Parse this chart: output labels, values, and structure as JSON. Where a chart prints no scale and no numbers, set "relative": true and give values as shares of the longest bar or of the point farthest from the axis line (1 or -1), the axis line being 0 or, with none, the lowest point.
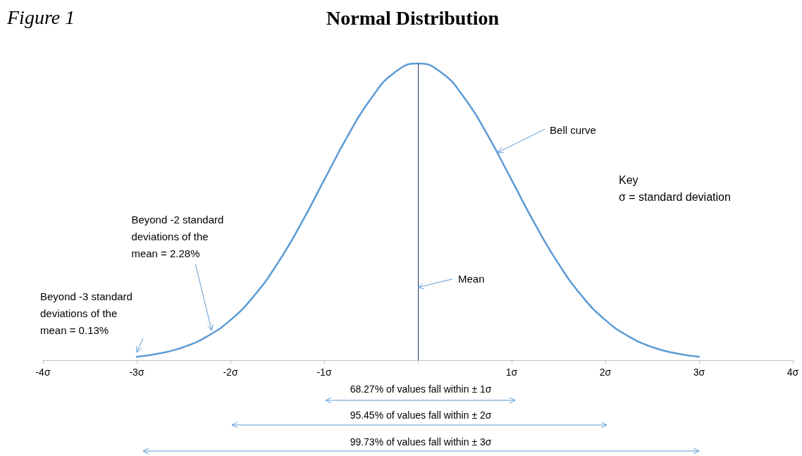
{
  "chart_data": {
    "type": "line",
    "title": "Normal Distribution",
    "relative": true,
    "x": [
      -3,
      -2.75,
      -2.5,
      -2.25,
      -2,
      -1.75,
      -1.5,
      -1.25,
      -1,
      -0.75,
      -0.5,
      -0.25,
      0,
      0.25,
      0.5,
      0.75,
      1,
      1.25,
      1.5,
      1.75,
      2,
      2.25,
      2.5,
      2.75,
      3
    ],
    "series": [
      {
        "color": "#5b9bd5",
        "values": [
          0.011,
          0.023,
          0.044,
          0.08,
          0.135,
          0.216,
          0.325,
          0.458,
          0.607,
          0.755,
          0.882,
          0.969,
          1,
          0.969,
          0.882,
          0.755,
          0.607,
          0.458,
          0.325,
          0.216,
          0.135,
          0.08,
          0.044,
          0.023,
          0.011
        ]
      }
    ],
    "xlim": [
      -4,
      4
    ],
    "xticks": [
      {
        "value": -4,
        "label": "-4σ"
      },
      {
        "value": -3,
        "label": "-3σ"
      },
      {
        "value": -2,
        "label": "-2σ"
      },
      {
        "value": -1,
        "label": "-1σ"
      },
      {
        "value": 0,
        "label": null
      },
      {
        "value": 1,
        "label": "1σ"
      },
      {
        "value": 2,
        "label": "2σ"
      },
      {
        "value": 3,
        "label": "3σ"
      },
      {
        "value": 4,
        "label": "4σ"
      }
    ],
    "marker": "none",
    "line_style": "solid",
    "grid": false,
    "ref_lines": [
      {
        "axis": "x",
        "value": 0,
        "color": "#1f3864"
      }
    ],
    "annotations": [
      "Figure 1",
      "Key\nσ = standard deviation",
      "68.27% of values fall within ± 1σ",
      "95.45% of values fall within ± 2σ",
      "99.73% of values fall within ± 3σ",
      {
        "text": "Mean",
        "x": 0,
        "y": 0.245
      },
      {
        "text": "Bell curve",
        "x": 0.85,
        "y": 0.7
      },
      {
        "text": "Beyond -2 standard deviations of the mean = 2.28%",
        "x": -2.2,
        "y": 0.1
      },
      {
        "text": "Beyond -3 standard deviations of the mean = 0.13%",
        "x": -3,
        "y": 0.026
      }
    ]
  }
}
